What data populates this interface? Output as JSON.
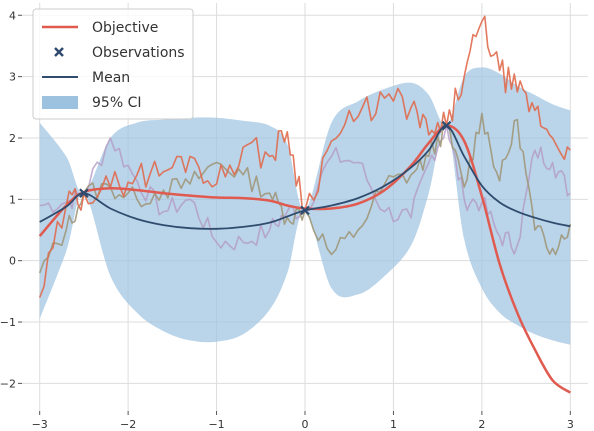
{
  "chart_data": {
    "type": "line",
    "title": "",
    "xlabel": "",
    "ylabel": "",
    "xlim": [
      -3.2,
      3.2
    ],
    "ylim": [
      -2.45,
      4.2
    ],
    "grid": true,
    "legend_placement": "top-left",
    "xticks": [
      -3,
      -2,
      -1,
      0,
      1,
      2,
      3
    ],
    "yticks": [
      -2,
      -1,
      0,
      1,
      2,
      3,
      4
    ],
    "xtick_labels": [
      "−3",
      "−2",
      "−1",
      "0",
      "1",
      "2",
      "3"
    ],
    "ytick_labels": [
      "−2",
      "−1",
      "0",
      "1",
      "2",
      "3",
      "4"
    ],
    "legend": [
      {
        "label": "Objective",
        "kind": "line",
        "color": "#e05a4f"
      },
      {
        "label": "Observations",
        "kind": "marker",
        "color": "#2f4b6e"
      },
      {
        "label": "Mean",
        "kind": "line",
        "color": "#2f4b6e"
      },
      {
        "label": "95% CI",
        "kind": "patch",
        "color": "#9cc2e0"
      }
    ],
    "colors": {
      "objective": "#e05a4f",
      "mean": "#2f4b6e",
      "ci": "#9cc2e0",
      "grid": "#dddddd",
      "sample_red": "#e06a4c",
      "sample_olive": "#a0977a",
      "sample_purple": "#b49ac4"
    },
    "observations": {
      "x": [
        -2.5,
        0.0,
        1.6
      ],
      "y": [
        1.1,
        0.82,
        2.2
      ]
    },
    "x": [
      -3.0,
      -2.7,
      -2.5,
      -2.2,
      -1.9,
      -1.6,
      -1.3,
      -1.0,
      -0.7,
      -0.4,
      -0.2,
      0.0,
      0.3,
      0.6,
      0.9,
      1.2,
      1.4,
      1.6,
      1.8,
      2.0,
      2.2,
      2.4,
      2.6,
      2.8,
      3.0
    ],
    "series": [
      {
        "name": "Objective",
        "style": "objective",
        "values": [
          0.4,
          0.9,
          1.12,
          1.18,
          1.15,
          1.1,
          1.06,
          1.03,
          1.02,
          0.98,
          0.9,
          0.85,
          0.85,
          0.93,
          1.15,
          1.55,
          1.92,
          2.2,
          1.95,
          1.05,
          -0.05,
          -0.85,
          -1.45,
          -1.95,
          -2.15
        ]
      },
      {
        "name": "Mean",
        "style": "mean",
        "values": [
          0.63,
          0.88,
          1.1,
          0.85,
          0.68,
          0.58,
          0.53,
          0.52,
          0.55,
          0.62,
          0.72,
          0.82,
          0.9,
          1.02,
          1.22,
          1.52,
          1.8,
          2.2,
          1.7,
          1.22,
          0.95,
          0.8,
          0.7,
          0.62,
          0.56
        ]
      },
      {
        "name": "",
        "style": "ci_upper",
        "values": [
          2.25,
          1.7,
          1.1,
          2.0,
          2.25,
          2.3,
          2.33,
          2.33,
          2.28,
          2.2,
          1.9,
          0.82,
          2.25,
          2.6,
          2.8,
          2.9,
          2.7,
          2.2,
          3.0,
          3.15,
          3.05,
          2.85,
          2.7,
          2.55,
          2.45
        ]
      },
      {
        "name": "",
        "style": "ci_lower",
        "values": [
          -0.95,
          0.15,
          1.1,
          -0.25,
          -0.85,
          -1.15,
          -1.3,
          -1.32,
          -1.2,
          -0.8,
          -0.2,
          0.82,
          -0.45,
          -0.55,
          -0.25,
          0.25,
          1.1,
          2.2,
          0.35,
          -0.45,
          -0.85,
          -1.05,
          -1.2,
          -1.3,
          -1.37
        ]
      },
      {
        "name": "",
        "style": "sample_red",
        "values": [
          -0.6,
          0.9,
          1.1,
          1.2,
          1.4,
          1.45,
          1.7,
          1.25,
          1.85,
          1.7,
          2.1,
          0.82,
          1.95,
          2.35,
          2.65,
          2.5,
          2.05,
          2.2,
          3.0,
          3.9,
          3.1,
          2.75,
          2.45,
          2.0,
          1.8
        ]
      },
      {
        "name": "",
        "style": "sample_olive",
        "values": [
          -0.2,
          0.5,
          1.1,
          1.2,
          1.0,
          1.15,
          1.25,
          1.6,
          1.4,
          1.1,
          0.7,
          0.82,
          0.1,
          0.5,
          1.25,
          1.4,
          1.7,
          2.2,
          1.2,
          2.4,
          1.3,
          2.3,
          0.5,
          0.2,
          0.6
        ]
      },
      {
        "name": "",
        "style": "sample_purple",
        "values": [
          0.9,
          0.95,
          1.1,
          2.0,
          1.3,
          0.8,
          1.0,
          0.3,
          0.3,
          0.5,
          0.8,
          0.82,
          1.7,
          1.6,
          0.8,
          0.7,
          1.6,
          2.2,
          1.0,
          0.95,
          0.4,
          0.25,
          1.8,
          1.6,
          1.1
        ]
      }
    ]
  }
}
